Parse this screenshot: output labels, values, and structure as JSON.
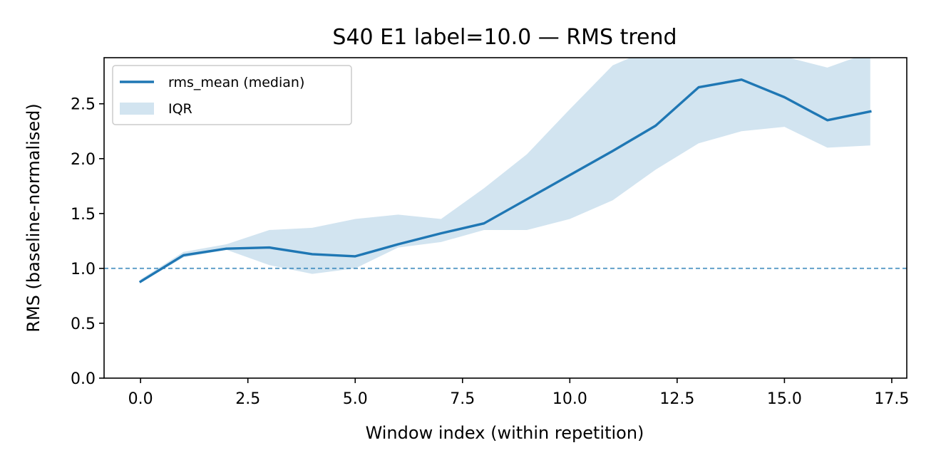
{
  "chart_data": {
    "type": "line",
    "title": "S40 E1 label=10.0 — RMS trend",
    "xlabel": "Window index (within repetition)",
    "ylabel": "RMS (baseline-normalised)",
    "xlim": [
      -0.85,
      17.85
    ],
    "ylim": [
      0.0,
      2.92
    ],
    "x_ticks": [
      0.0,
      2.5,
      5.0,
      7.5,
      10.0,
      12.5,
      15.0,
      17.5
    ],
    "x_tick_labels": [
      "0.0",
      "2.5",
      "5.0",
      "7.5",
      "10.0",
      "12.5",
      "15.0",
      "17.5"
    ],
    "y_ticks": [
      0.0,
      0.5,
      1.0,
      1.5,
      2.0,
      2.5
    ],
    "y_tick_labels": [
      "0.0",
      "0.5",
      "1.0",
      "1.5",
      "2.0",
      "2.5"
    ],
    "grid": false,
    "legend_position": "top-left",
    "x": [
      0,
      1,
      2,
      3,
      4,
      5,
      6,
      7,
      8,
      9,
      10,
      11,
      12,
      13,
      14,
      15,
      16,
      17
    ],
    "series": [
      {
        "name": "rms_mean (median)",
        "color": "#1f77b4",
        "values": [
          0.88,
          1.12,
          1.18,
          1.19,
          1.13,
          1.11,
          1.22,
          1.32,
          1.41,
          1.63,
          1.85,
          2.07,
          2.3,
          2.65,
          2.72,
          2.56,
          2.35,
          2.43
        ]
      }
    ],
    "band": {
      "name": "IQR",
      "color": "#1f77b4",
      "opacity": 0.2,
      "lower": [
        0.87,
        1.1,
        1.17,
        1.03,
        0.95,
        1.0,
        1.19,
        1.24,
        1.35,
        1.35,
        1.45,
        1.62,
        1.9,
        2.14,
        2.25,
        2.29,
        2.1,
        2.12
      ],
      "upper": [
        0.9,
        1.15,
        1.22,
        1.35,
        1.37,
        1.45,
        1.49,
        1.45,
        1.73,
        2.04,
        2.45,
        2.85,
        3.02,
        3.02,
        3.02,
        2.93,
        2.83,
        2.97
      ]
    },
    "reference_line": {
      "y": 1.0,
      "style": "dashed",
      "color": "#1f77b4"
    }
  }
}
